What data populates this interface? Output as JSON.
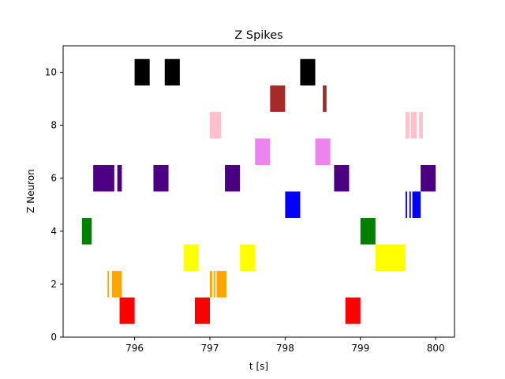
{
  "chart_data": {
    "type": "raster",
    "title": "Z Spikes",
    "xlabel": "t [s]",
    "ylabel": "Z Neuron",
    "xlim": [
      795.05,
      800.25
    ],
    "ylim": [
      0,
      11
    ],
    "xticks": [
      796,
      797,
      798,
      799,
      800
    ],
    "yticks": [
      0,
      2,
      4,
      6,
      8,
      10
    ],
    "grid": false,
    "bar_height": 1.0,
    "neurons": [
      {
        "neuron": 1,
        "color": "#ff0000",
        "intervals": [
          [
            795.8,
            796.0
          ],
          [
            796.8,
            797.0
          ],
          [
            798.8,
            799.0
          ]
        ]
      },
      {
        "neuron": 2,
        "color": "#ffa500",
        "intervals": [
          [
            795.64,
            795.66
          ],
          [
            795.7,
            795.83
          ],
          [
            797.0,
            797.03
          ],
          [
            797.05,
            797.07
          ],
          [
            797.09,
            797.22
          ]
        ]
      },
      {
        "neuron": 3,
        "color": "#ffff00",
        "intervals": [
          [
            796.65,
            796.85
          ],
          [
            797.4,
            797.6
          ],
          [
            799.2,
            799.6
          ]
        ]
      },
      {
        "neuron": 4,
        "color": "#008000",
        "intervals": [
          [
            795.3,
            795.43
          ],
          [
            799.0,
            799.2
          ]
        ]
      },
      {
        "neuron": 5,
        "color": "#0000ff",
        "intervals": [
          [
            798.0,
            798.2
          ],
          [
            799.6,
            799.62
          ],
          [
            799.65,
            799.67
          ],
          [
            799.69,
            799.8
          ]
        ]
      },
      {
        "neuron": 6,
        "color": "#4b0082",
        "intervals": [
          [
            795.45,
            795.73
          ],
          [
            795.77,
            795.83
          ],
          [
            796.25,
            796.45
          ],
          [
            797.2,
            797.4
          ],
          [
            798.65,
            798.85
          ],
          [
            799.8,
            800.0
          ]
        ]
      },
      {
        "neuron": 7,
        "color": "#ee82ee",
        "intervals": [
          [
            797.6,
            797.8
          ],
          [
            798.4,
            798.6
          ]
        ]
      },
      {
        "neuron": 8,
        "color": "#ffc0cb",
        "intervals": [
          [
            797.0,
            797.15
          ],
          [
            799.6,
            799.65
          ],
          [
            799.67,
            799.75
          ],
          [
            799.78,
            799.83
          ]
        ]
      },
      {
        "neuron": 9,
        "color": "#a52a2a",
        "intervals": [
          [
            797.8,
            798.0
          ],
          [
            798.5,
            798.55
          ]
        ]
      },
      {
        "neuron": 10,
        "color": "#000000",
        "intervals": [
          [
            796.0,
            796.2
          ],
          [
            796.4,
            796.6
          ],
          [
            798.2,
            798.4
          ]
        ]
      }
    ]
  }
}
